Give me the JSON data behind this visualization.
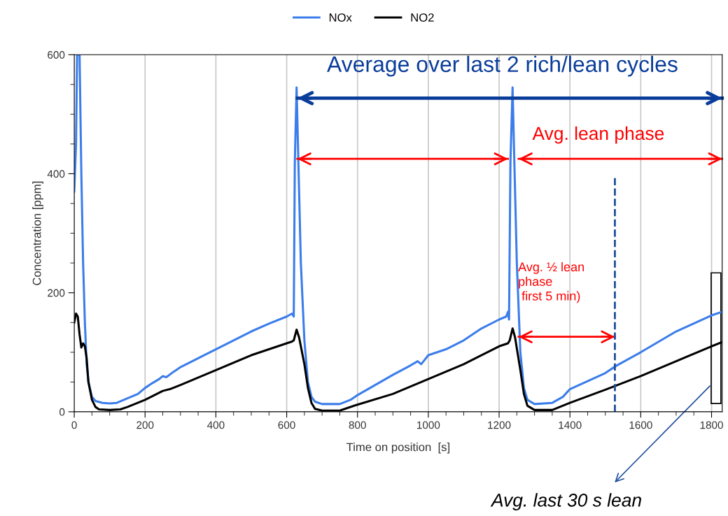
{
  "chart_data": {
    "type": "line",
    "xlabel": "Time on position  [s]",
    "ylabel": "Concentration [ppm]",
    "xlim": [
      0,
      1830
    ],
    "xticks": [
      0,
      200,
      400,
      600,
      800,
      1000,
      1200,
      1400,
      1600,
      1800
    ],
    "ylim": [
      0,
      600
    ],
    "yticks": [
      0,
      200,
      400,
      600
    ],
    "grid": "x",
    "legend": "top",
    "marker": "none",
    "line_style": "solid",
    "annotations": [
      "Average over last 2 rich/lean cycles",
      "Avg. lean phase",
      "Avg. ½ lean\nphase\n first 5 min)",
      "Avg. last 30 s lean"
    ],
    "ref_lines": [
      {
        "axis": "x",
        "value": 1527,
        "label": null,
        "color": "#1f4e9c",
        "line_style": "dashed"
      }
    ],
    "series": [
      {
        "name": "NOx",
        "color": "#3b7dea",
        "x": [
          0,
          5,
          8,
          15,
          20,
          25,
          30,
          35,
          40,
          50,
          60,
          80,
          100,
          120,
          140,
          160,
          180,
          200,
          220,
          240,
          250,
          260,
          280,
          300,
          350,
          400,
          450,
          500,
          550,
          600,
          615,
          620,
          623,
          628,
          633,
          640,
          650,
          660,
          670,
          680,
          700,
          750,
          780,
          800,
          850,
          900,
          950,
          970,
          980,
          1000,
          1050,
          1100,
          1150,
          1200,
          1220,
          1225,
          1228,
          1232,
          1238,
          1243,
          1250,
          1260,
          1270,
          1280,
          1300,
          1350,
          1380,
          1400,
          1500,
          1530,
          1600,
          1700,
          1800,
          1830
        ],
        "values": [
          370,
          450,
          600,
          600,
          400,
          250,
          150,
          80,
          50,
          25,
          18,
          15,
          14,
          15,
          20,
          25,
          30,
          40,
          48,
          55,
          60,
          58,
          67,
          75,
          90,
          105,
          120,
          135,
          148,
          160,
          165,
          160,
          420,
          545,
          420,
          250,
          120,
          50,
          25,
          17,
          13,
          13,
          20,
          28,
          45,
          62,
          78,
          85,
          80,
          95,
          105,
          120,
          140,
          155,
          160,
          168,
          155,
          420,
          545,
          420,
          250,
          100,
          40,
          20,
          13,
          15,
          25,
          38,
          65,
          77,
          100,
          135,
          162,
          168
        ]
      },
      {
        "name": "NO2",
        "color": "#000000",
        "x": [
          0,
          5,
          10,
          15,
          20,
          25,
          30,
          35,
          40,
          50,
          60,
          70,
          100,
          130,
          150,
          200,
          250,
          270,
          300,
          400,
          500,
          600,
          615,
          620,
          628,
          635,
          650,
          660,
          670,
          680,
          700,
          750,
          800,
          900,
          1000,
          1100,
          1200,
          1225,
          1230,
          1238,
          1245,
          1260,
          1270,
          1280,
          1300,
          1350,
          1400,
          1500,
          1600,
          1700,
          1800,
          1830
        ],
        "values": [
          150,
          165,
          160,
          130,
          108,
          115,
          110,
          90,
          50,
          20,
          8,
          4,
          3,
          4,
          8,
          20,
          35,
          38,
          45,
          70,
          95,
          115,
          118,
          120,
          138,
          125,
          80,
          40,
          15,
          5,
          2,
          2,
          12,
          30,
          55,
          80,
          110,
          115,
          120,
          140,
          125,
          70,
          30,
          10,
          3,
          3,
          15,
          37,
          60,
          85,
          110,
          117
        ]
      },
      {
        "color": "#0a3d9a",
        "x": [
          630,
          1830
        ],
        "values": [
          527,
          527
        ]
      },
      {
        "color": "#ff0000",
        "x": [
          630,
          1225
        ],
        "values": [
          425,
          425
        ]
      },
      {
        "color": "#ff0000",
        "x": [
          1255,
          1830
        ],
        "values": [
          425,
          425
        ]
      },
      {
        "color": "#ff0000",
        "x": [
          1255,
          1527
        ],
        "values": [
          126,
          126
        ]
      }
    ]
  }
}
